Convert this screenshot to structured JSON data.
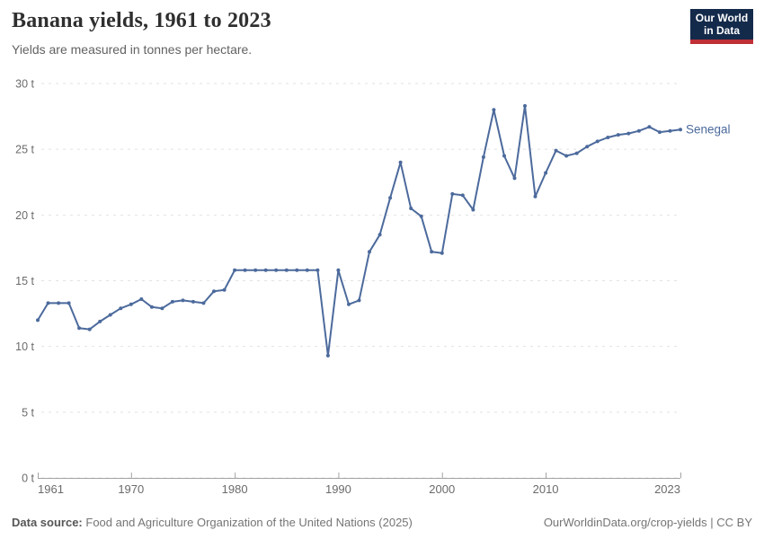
{
  "header": {
    "title": "Banana yields, 1961 to 2023",
    "subtitle": "Yields are measured in tonnes per hectare."
  },
  "logo": {
    "line1": "Our World",
    "line2": "in Data",
    "bg_color": "#142a4b",
    "accent_color": "#bf3036"
  },
  "chart_data": {
    "type": "line",
    "title": "Banana yields, 1961 to 2023",
    "ylabel": "tonnes per hectare",
    "unit_suffix": " t",
    "ylim": [
      0,
      30
    ],
    "yticks": [
      0,
      5,
      10,
      15,
      20,
      25,
      30
    ],
    "xticks": [
      1961,
      1970,
      1980,
      1990,
      2000,
      2010,
      2023
    ],
    "grid": "horizontal dashed",
    "legend": "entity label at line end",
    "years": [
      1961,
      1962,
      1963,
      1964,
      1965,
      1966,
      1967,
      1968,
      1969,
      1970,
      1971,
      1972,
      1973,
      1974,
      1975,
      1976,
      1977,
      1978,
      1979,
      1980,
      1981,
      1982,
      1983,
      1984,
      1985,
      1986,
      1987,
      1988,
      1989,
      1990,
      1991,
      1992,
      1993,
      1994,
      1995,
      1996,
      1997,
      1998,
      1999,
      2000,
      2001,
      2002,
      2003,
      2004,
      2005,
      2006,
      2007,
      2008,
      2009,
      2010,
      2011,
      2012,
      2013,
      2014,
      2015,
      2016,
      2017,
      2018,
      2019,
      2020,
      2021,
      2022,
      2023
    ],
    "series": [
      {
        "name": "Senegal",
        "color": "#4C6A9C",
        "values": [
          12.0,
          13.3,
          13.3,
          13.3,
          11.4,
          11.3,
          11.9,
          12.4,
          12.9,
          13.2,
          13.6,
          13.0,
          12.9,
          13.4,
          13.5,
          13.4,
          13.3,
          14.2,
          14.3,
          15.8,
          15.8,
          15.8,
          15.8,
          15.8,
          15.8,
          15.8,
          15.8,
          15.8,
          9.3,
          15.8,
          13.2,
          13.5,
          17.2,
          18.5,
          21.3,
          24.0,
          20.5,
          19.9,
          17.2,
          17.1,
          21.6,
          21.5,
          20.4,
          24.4,
          28.0,
          24.5,
          22.8,
          28.3,
          21.4,
          23.2,
          24.9,
          24.5,
          24.7,
          25.2,
          25.6,
          25.9,
          26.1,
          26.2,
          26.4,
          26.7,
          26.3,
          26.4,
          26.5
        ]
      }
    ],
    "colors": {
      "line": "#4C6A9C",
      "grid": "#e2e2e2",
      "axis": "#a3a3a3",
      "tick_text": "#6b6b6b"
    }
  },
  "footer": {
    "source_label": "Data source:",
    "source_text": "Food and Agriculture Organization of the United Nations (2025)",
    "url": "OurWorldinData.org/crop-yields",
    "separator": " | ",
    "license": "CC BY"
  }
}
